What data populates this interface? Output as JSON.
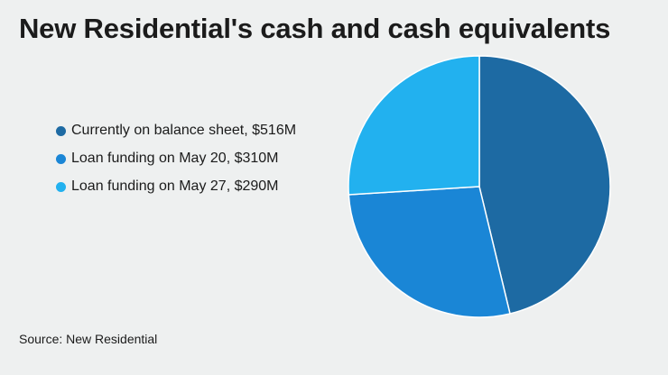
{
  "title": "New Residential's cash and cash equivalents",
  "source": "Source: New Residential",
  "chart_data": {
    "type": "pie",
    "title": "New Residential's cash and cash equivalents",
    "legend_position": "left",
    "slices": [
      {
        "label": "Currently on balance sheet, $516M",
        "value": 516,
        "color": "#1d6aa3"
      },
      {
        "label": "Loan funding on May 20, $310M",
        "value": 310,
        "color": "#1a86d6"
      },
      {
        "label": "Loan funding on May 27, $290M",
        "value": 290,
        "color": "#22b1ef"
      }
    ]
  }
}
